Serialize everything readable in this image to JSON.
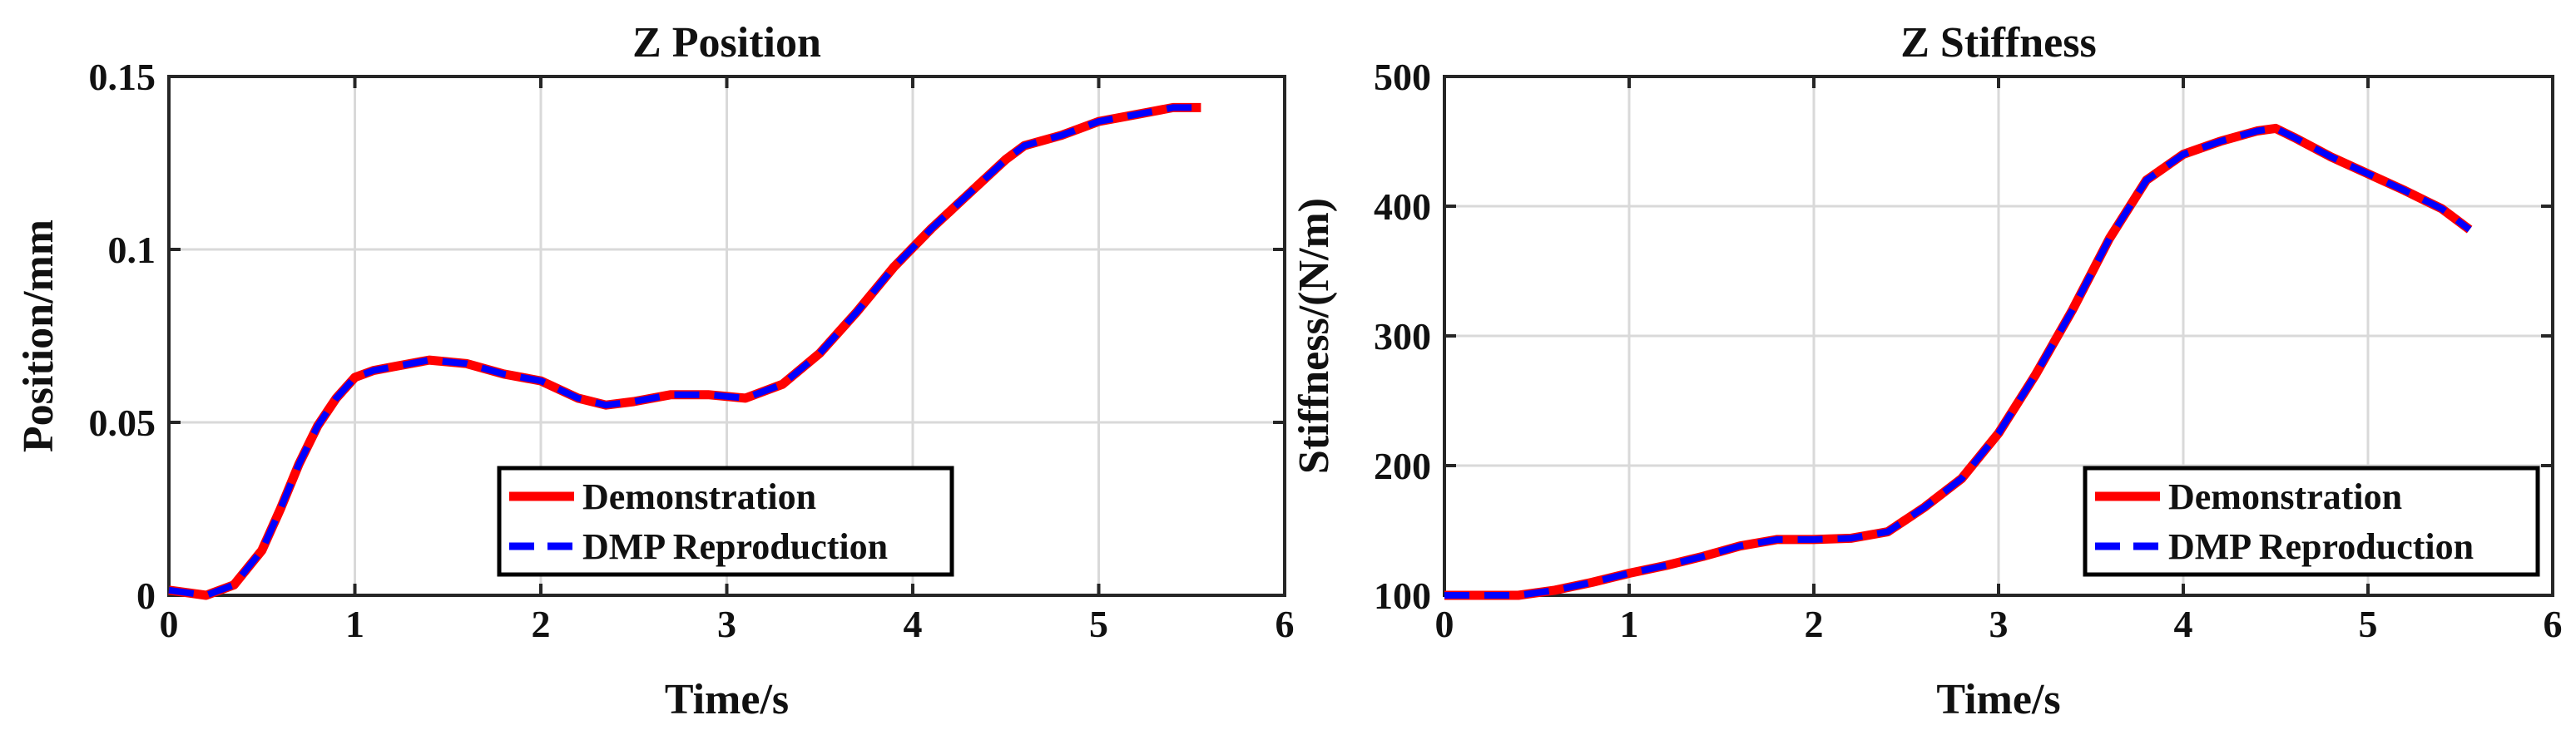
{
  "colors": {
    "demonstration": "#ff0000",
    "reproduction": "#0000ff",
    "grid": "#d9d9d9",
    "axis": "#262626"
  },
  "chart_data": [
    {
      "type": "line",
      "title": "Z Position",
      "xlabel": "Time/s",
      "ylabel": "Position/mm",
      "xlim": [
        0,
        6
      ],
      "ylim": [
        0,
        0.15
      ],
      "xticks": [
        0,
        1,
        2,
        3,
        4,
        5,
        6
      ],
      "yticks": [
        0,
        0.05,
        0.1,
        0.15
      ],
      "xtick_labels": [
        "0",
        "1",
        "2",
        "3",
        "4",
        "5",
        "6"
      ],
      "ytick_labels": [
        "0",
        "0.05",
        "0.1",
        "0.15"
      ],
      "grid": true,
      "legend_position": "bottom-right",
      "series": [
        {
          "name": "Demonstration",
          "style": "solid",
          "x": [
            0,
            0.2,
            0.35,
            0.5,
            0.6,
            0.7,
            0.8,
            0.9,
            1.0,
            1.1,
            1.2,
            1.4,
            1.6,
            1.8,
            2.0,
            2.2,
            2.35,
            2.5,
            2.7,
            2.9,
            3.1,
            3.3,
            3.5,
            3.7,
            3.9,
            4.1,
            4.3,
            4.5,
            4.6,
            4.8,
            5.0,
            5.2,
            5.4,
            5.55
          ],
          "y": [
            0.0015,
            0,
            0.003,
            0.013,
            0.025,
            0.038,
            0.049,
            0.057,
            0.063,
            0.065,
            0.066,
            0.068,
            0.067,
            0.064,
            0.062,
            0.057,
            0.055,
            0.056,
            0.058,
            0.058,
            0.057,
            0.061,
            0.07,
            0.082,
            0.095,
            0.106,
            0.116,
            0.126,
            0.13,
            0.133,
            0.137,
            0.139,
            0.141,
            0.141
          ]
        },
        {
          "name": "DMP Reproduction",
          "style": "dashed",
          "x": [
            0,
            0.2,
            0.35,
            0.5,
            0.6,
            0.7,
            0.8,
            0.9,
            1.0,
            1.1,
            1.2,
            1.4,
            1.6,
            1.8,
            2.0,
            2.2,
            2.35,
            2.5,
            2.7,
            2.9,
            3.1,
            3.3,
            3.5,
            3.7,
            3.9,
            4.1,
            4.3,
            4.5,
            4.6,
            4.8,
            5.0,
            5.2,
            5.4,
            5.55
          ],
          "y": [
            0.0015,
            0,
            0.003,
            0.013,
            0.025,
            0.038,
            0.049,
            0.057,
            0.063,
            0.065,
            0.066,
            0.068,
            0.067,
            0.064,
            0.062,
            0.057,
            0.055,
            0.056,
            0.058,
            0.058,
            0.057,
            0.061,
            0.07,
            0.082,
            0.095,
            0.106,
            0.116,
            0.126,
            0.13,
            0.133,
            0.137,
            0.139,
            0.141,
            0.141
          ]
        }
      ]
    },
    {
      "type": "line",
      "title": "Z Stiffness",
      "xlabel": "Time/s",
      "ylabel": "Stiffness/(N/m)",
      "xlim": [
        0,
        6
      ],
      "ylim": [
        100,
        500
      ],
      "xticks": [
        0,
        1,
        2,
        3,
        4,
        5,
        6
      ],
      "yticks": [
        100,
        200,
        300,
        400,
        500
      ],
      "xtick_labels": [
        "0",
        "1",
        "2",
        "3",
        "4",
        "5",
        "6"
      ],
      "ytick_labels": [
        "100",
        "200",
        "300",
        "400",
        "500"
      ],
      "grid": true,
      "legend_position": "bottom-right",
      "series": [
        {
          "name": "Demonstration",
          "style": "solid",
          "x": [
            0,
            0.2,
            0.4,
            0.6,
            0.8,
            1.0,
            1.2,
            1.4,
            1.6,
            1.8,
            2.0,
            2.2,
            2.4,
            2.6,
            2.8,
            3.0,
            3.2,
            3.4,
            3.6,
            3.8,
            4.0,
            4.2,
            4.4,
            4.5,
            4.6,
            4.8,
            5.0,
            5.2,
            5.4,
            5.55
          ],
          "y": [
            100,
            100,
            100,
            104,
            110,
            117,
            123,
            130,
            138,
            143,
            143,
            144,
            149,
            168,
            190,
            225,
            270,
            320,
            375,
            420,
            440,
            450,
            458,
            460,
            453,
            438,
            425,
            412,
            398,
            382
          ]
        },
        {
          "name": "DMP Reproduction",
          "style": "dashed",
          "x": [
            0,
            0.2,
            0.4,
            0.6,
            0.8,
            1.0,
            1.2,
            1.4,
            1.6,
            1.8,
            2.0,
            2.2,
            2.4,
            2.6,
            2.8,
            3.0,
            3.2,
            3.4,
            3.6,
            3.8,
            4.0,
            4.2,
            4.4,
            4.5,
            4.6,
            4.8,
            5.0,
            5.2,
            5.4,
            5.55
          ],
          "y": [
            100,
            100,
            100,
            104,
            110,
            117,
            123,
            130,
            138,
            143,
            143,
            144,
            149,
            168,
            190,
            225,
            270,
            320,
            375,
            420,
            440,
            450,
            458,
            460,
            453,
            438,
            425,
            412,
            398,
            382
          ]
        }
      ]
    }
  ]
}
